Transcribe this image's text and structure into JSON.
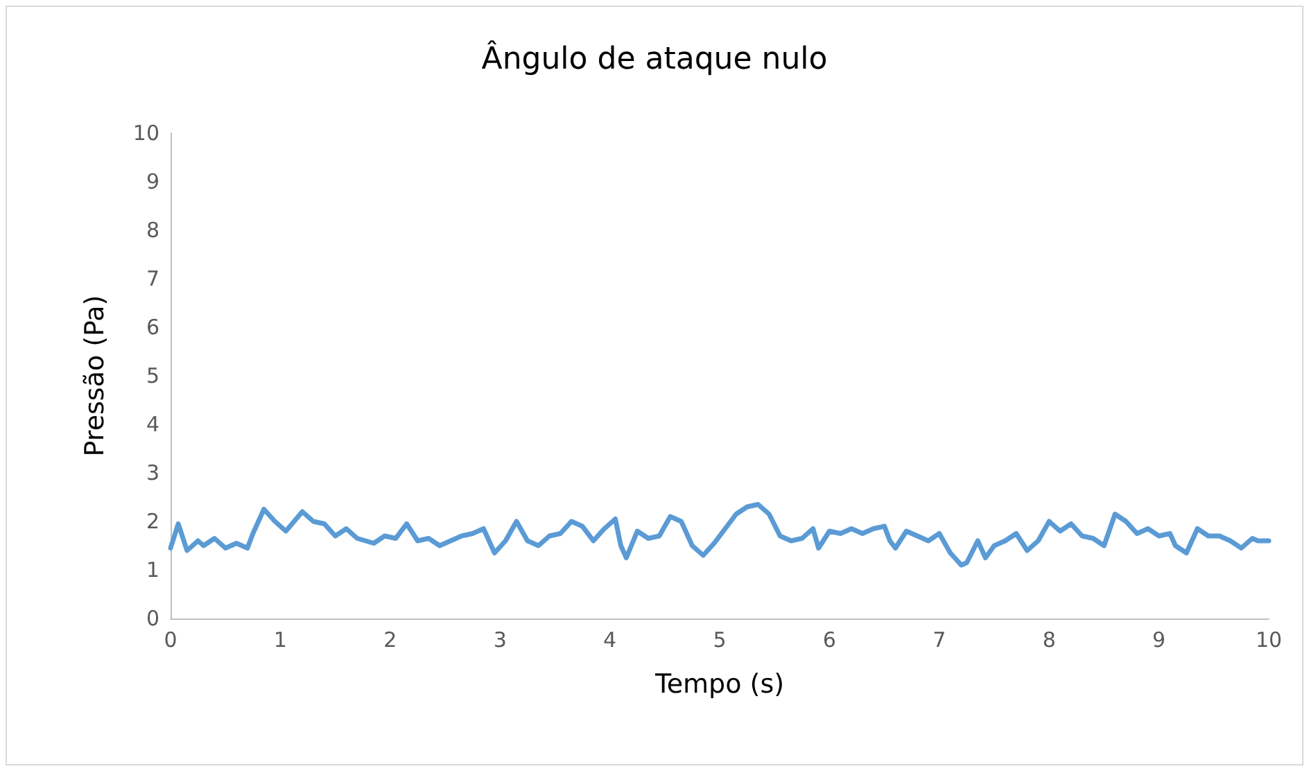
{
  "chart_data": {
    "type": "line",
    "title": "Ângulo de ataque nulo",
    "xlabel": "Tempo (s)",
    "ylabel": "Pressão (Pa)",
    "xlim": [
      0,
      10
    ],
    "xticks": [
      0,
      1,
      2,
      3,
      4,
      5,
      6,
      7,
      8,
      9,
      10
    ],
    "ylim": [
      0,
      10
    ],
    "yticks": [
      0,
      1,
      2,
      3,
      4,
      5,
      6,
      7,
      8,
      9,
      10
    ],
    "grid": false,
    "marker": "none",
    "line_style": "solid",
    "series": [
      {
        "color": "#5b9bd5",
        "x": [
          0,
          0.07,
          0.15,
          0.25,
          0.3,
          0.4,
          0.5,
          0.6,
          0.7,
          0.75,
          0.85,
          0.95,
          1.05,
          1.2,
          1.3,
          1.4,
          1.5,
          1.6,
          1.7,
          1.85,
          1.95,
          2.05,
          2.15,
          2.25,
          2.35,
          2.45,
          2.55,
          2.65,
          2.75,
          2.85,
          2.95,
          3.05,
          3.15,
          3.25,
          3.35,
          3.45,
          3.55,
          3.65,
          3.75,
          3.85,
          3.95,
          4.05,
          4.1,
          4.15,
          4.25,
          4.35,
          4.45,
          4.55,
          4.65,
          4.75,
          4.85,
          4.95,
          5.05,
          5.15,
          5.25,
          5.35,
          5.45,
          5.55,
          5.65,
          5.75,
          5.85,
          5.9,
          6,
          6.1,
          6.2,
          6.3,
          6.4,
          6.5,
          6.55,
          6.6,
          6.7,
          6.8,
          6.9,
          7,
          7.1,
          7.2,
          7.25,
          7.35,
          7.42,
          7.5,
          7.6,
          7.7,
          7.8,
          7.9,
          8,
          8.1,
          8.2,
          8.3,
          8.4,
          8.5,
          8.6,
          8.7,
          8.8,
          8.9,
          9,
          9.1,
          9.15,
          9.25,
          9.35,
          9.45,
          9.55,
          9.65,
          9.75,
          9.85,
          9.9,
          10
        ],
        "values": [
          1.45,
          1.95,
          1.4,
          1.6,
          1.5,
          1.65,
          1.45,
          1.55,
          1.45,
          1.75,
          2.25,
          2.0,
          1.8,
          2.2,
          2.0,
          1.95,
          1.7,
          1.85,
          1.65,
          1.55,
          1.7,
          1.65,
          1.95,
          1.6,
          1.65,
          1.5,
          1.6,
          1.7,
          1.75,
          1.85,
          1.35,
          1.6,
          2.0,
          1.6,
          1.5,
          1.7,
          1.75,
          2.0,
          1.9,
          1.6,
          1.85,
          2.05,
          1.5,
          1.25,
          1.8,
          1.65,
          1.7,
          2.1,
          2.0,
          1.5,
          1.3,
          1.55,
          1.85,
          2.15,
          2.3,
          2.35,
          2.15,
          1.7,
          1.6,
          1.65,
          1.85,
          1.45,
          1.8,
          1.75,
          1.85,
          1.75,
          1.85,
          1.9,
          1.6,
          1.45,
          1.8,
          1.7,
          1.6,
          1.75,
          1.35,
          1.1,
          1.15,
          1.6,
          1.25,
          1.5,
          1.6,
          1.75,
          1.4,
          1.6,
          2.0,
          1.8,
          1.95,
          1.7,
          1.65,
          1.5,
          2.15,
          2.0,
          1.75,
          1.85,
          1.7,
          1.75,
          1.5,
          1.35,
          1.85,
          1.7,
          1.7,
          1.6,
          1.45,
          1.65,
          1.6,
          1.6
        ]
      }
    ]
  }
}
